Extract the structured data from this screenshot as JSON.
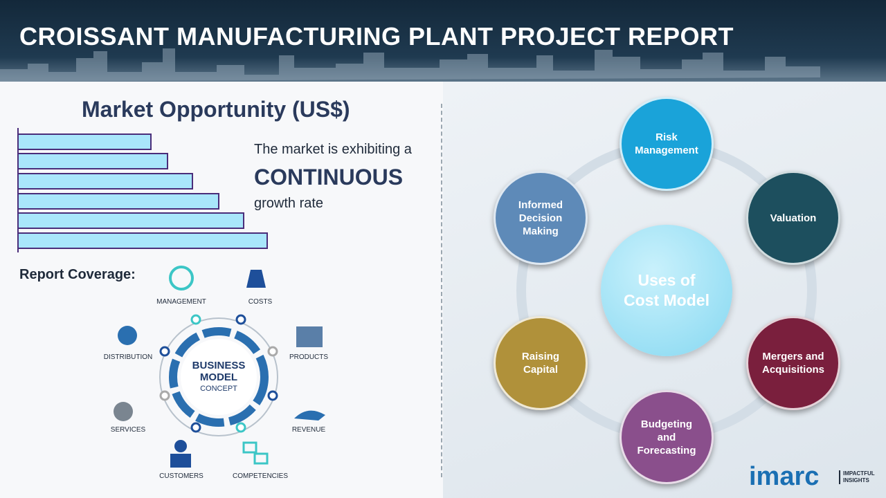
{
  "header": {
    "title": "CROISSANT MANUFACTURING PLANT PROJECT REPORT"
  },
  "market": {
    "title": "Market Opportunity (US$)",
    "line1": "The market is exhibiting a",
    "highlight": "CONTINUOUS",
    "line2": "growth rate"
  },
  "coverage": {
    "title": "Report Coverage:",
    "items": [
      "MANAGEMENT",
      "COSTS",
      "DISTRIBUTION",
      "PRODUCTS",
      "SERVICES",
      "REVENUE",
      "CUSTOMERS",
      "COMPETENCIES"
    ],
    "center": [
      "BUSINESS",
      "MODEL",
      "CONCEPT"
    ]
  },
  "cost_model": {
    "center": "Uses of Cost Model",
    "nodes": [
      "Risk Management",
      "Valuation",
      "Mergers and Acquisitions",
      "Budgeting and Forecasting",
      "Raising Capital",
      "Informed Decision Making"
    ]
  },
  "brand": {
    "logo": "imarc",
    "tagline": "IMPACTFUL INSIGHTS"
  }
}
